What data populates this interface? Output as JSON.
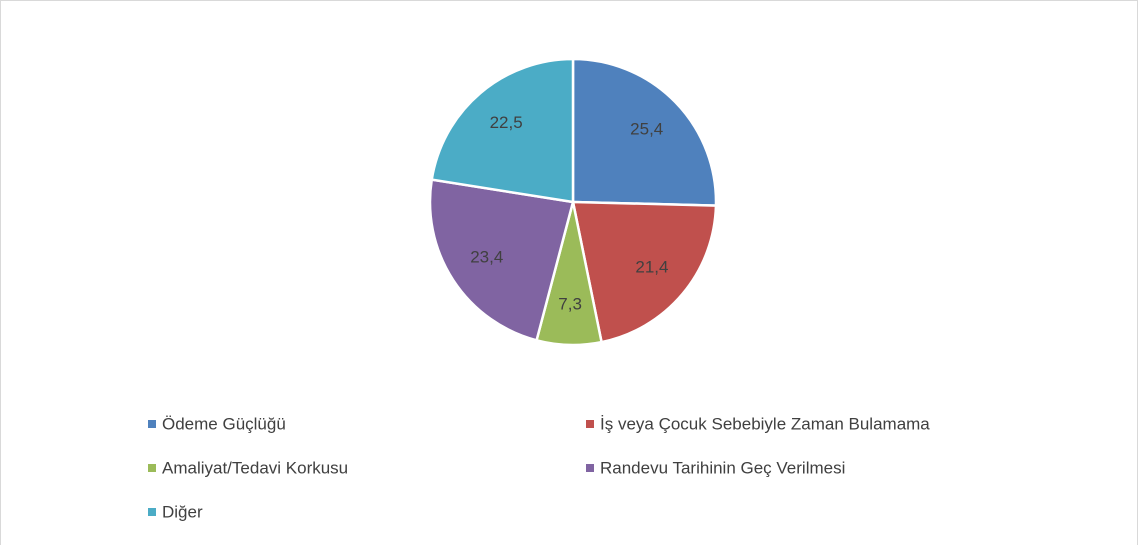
{
  "chart_data": {
    "type": "pie",
    "categories": [
      "Ödeme Güçlüğü",
      "İş veya Çocuk Sebebiyle Zaman Bulamama",
      "Amaliyat/Tedavi Korkusu",
      "Randevu Tarihinin Geç Verilmesi",
      "Diğer"
    ],
    "values": [
      25.4,
      21.4,
      7.3,
      23.4,
      22.5
    ],
    "value_labels": [
      "25,4",
      "21,4",
      "7,3",
      "23,4",
      "22,5"
    ],
    "colors": [
      "#4f81bd",
      "#c0504d",
      "#9bbb59",
      "#8064a2",
      "#4bacc6"
    ],
    "legend": "bottom"
  }
}
